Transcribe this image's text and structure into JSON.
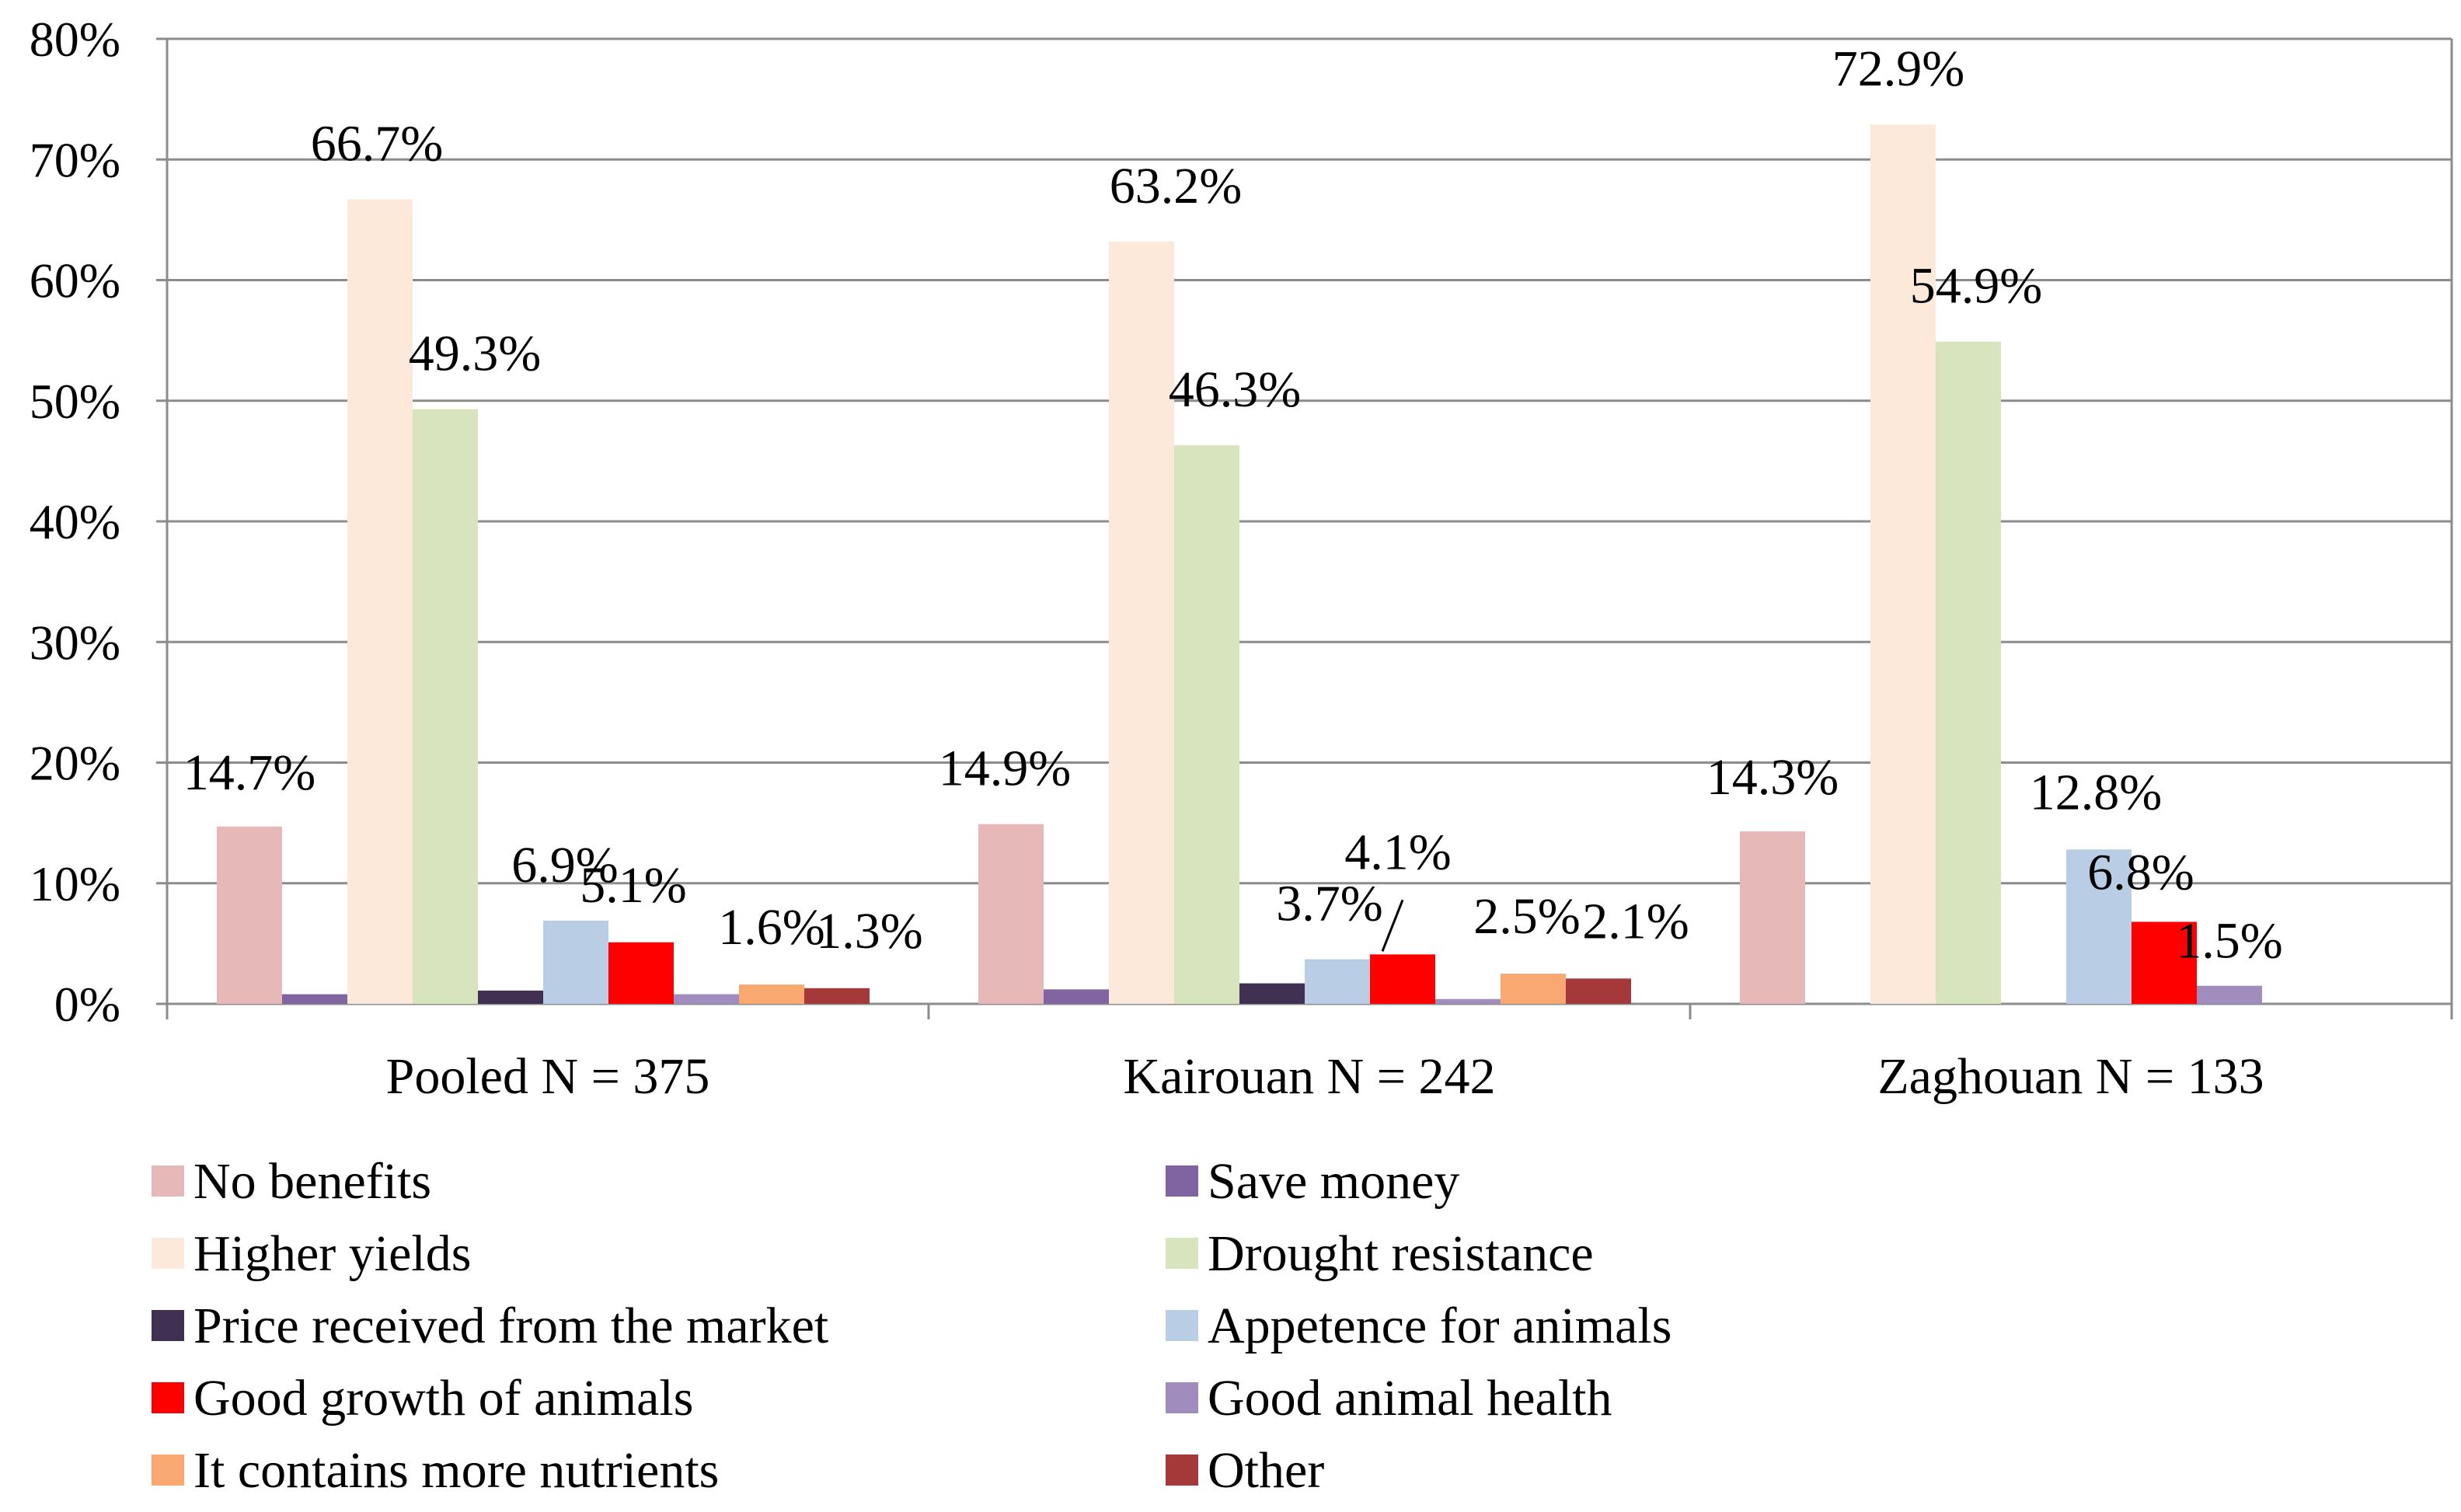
{
  "chart_data": {
    "type": "bar",
    "title": "",
    "xlabel": "",
    "ylabel": "",
    "ylim": [
      0,
      80
    ],
    "y_ticks": [
      "0%",
      "10%",
      "20%",
      "30%",
      "40%",
      "50%",
      "60%",
      "70%",
      "80%"
    ],
    "grid": true,
    "legend_position": "bottom",
    "categories": [
      "Pooled N = 375",
      "Kairouan N = 242",
      "Zaghouan N = 133"
    ],
    "series": [
      {
        "name": "No benefits",
        "color": "#e6b8b7",
        "values": [
          14.7,
          14.9,
          14.3
        ],
        "labels": [
          "14.7%",
          "14.9%",
          "14.3%"
        ]
      },
      {
        "name": "Save money",
        "color": "#8064a2",
        "values": [
          0.8,
          1.2,
          0
        ],
        "labels": [
          "",
          "",
          ""
        ]
      },
      {
        "name": "Higher yields",
        "color": "#fde9d9",
        "values": [
          66.7,
          63.2,
          72.9
        ],
        "labels": [
          "66.7%",
          "63.2%",
          "72.9%"
        ]
      },
      {
        "name": "Drought resistance",
        "color": "#d7e4bd",
        "values": [
          49.3,
          46.3,
          54.9
        ],
        "labels": [
          "49.3%",
          "46.3%",
          "54.9%"
        ]
      },
      {
        "name": "Price received from the market",
        "color": "#403152",
        "values": [
          1.1,
          1.7,
          0
        ],
        "labels": [
          "",
          "",
          ""
        ]
      },
      {
        "name": "Appetence for animals",
        "color": "#b9cde5",
        "values": [
          6.9,
          3.7,
          12.8
        ],
        "labels": [
          "6.9%",
          "3.7%",
          "12.8%"
        ]
      },
      {
        "name": "Good growth of animals",
        "color": "#ff0000",
        "values": [
          5.1,
          4.1,
          6.8
        ],
        "labels": [
          "5.1%",
          "4.1%",
          "6.8%"
        ]
      },
      {
        "name": "Good animal health",
        "color": "#a08dbd",
        "values": [
          0.8,
          0.4,
          1.5
        ],
        "labels": [
          "",
          "",
          "1.5%"
        ]
      },
      {
        "name": "It contains more nutrients",
        "color": "#f8a870",
        "values": [
          1.6,
          2.5,
          0
        ],
        "labels": [
          "1.6%",
          "2.5%",
          ""
        ]
      },
      {
        "name": "Other",
        "color": "#a53838",
        "values": [
          1.3,
          2.1,
          0
        ],
        "labels": [
          "1.3%",
          "2.1%",
          ""
        ]
      }
    ]
  }
}
